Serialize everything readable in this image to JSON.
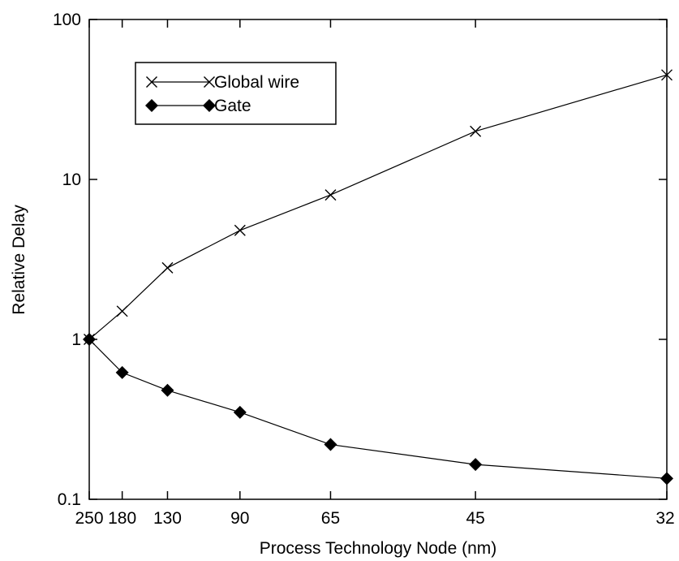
{
  "chart_data": {
    "type": "line",
    "title": "",
    "xlabel": "Process Technology Node (nm)",
    "ylabel": "Relative Delay",
    "yscale": "log",
    "ylim": [
      0.1,
      100
    ],
    "y_ticks": [
      "0.1",
      "1",
      "10",
      "100"
    ],
    "categories": [
      "250",
      "180",
      "130",
      "90",
      "65",
      "45",
      "32"
    ],
    "series": [
      {
        "name": "Global wire",
        "marker": "x",
        "values": [
          1.0,
          1.5,
          2.8,
          4.8,
          8.0,
          20.0,
          45.0
        ]
      },
      {
        "name": "Gate",
        "marker": "diamond",
        "values": [
          1.0,
          0.62,
          0.48,
          0.35,
          0.22,
          0.165,
          0.135
        ]
      }
    ],
    "legend_position": "top-left",
    "grid": false,
    "line_color": "#000000"
  }
}
